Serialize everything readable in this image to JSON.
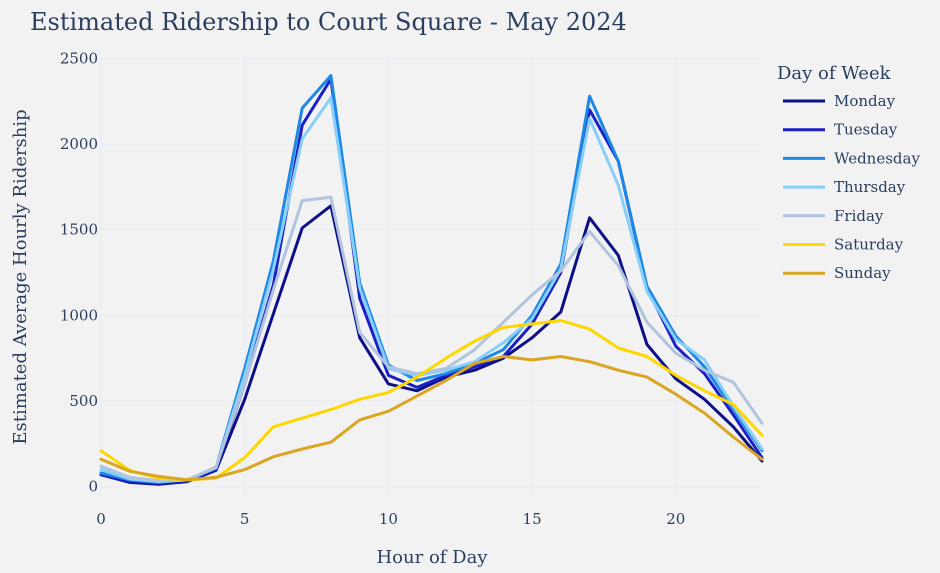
{
  "chart_data": {
    "type": "line",
    "title": "Estimated Ridership to Court Square - May 2024",
    "xlabel": "Hour of Day",
    "ylabel": "Estimated Average Hourly Ridership",
    "xlim": [
      0,
      23
    ],
    "ylim": [
      -60,
      2520
    ],
    "xticks": [
      0,
      5,
      10,
      15,
      20
    ],
    "yticks": [
      0,
      500,
      1000,
      1500,
      2000,
      2500
    ],
    "grid": true,
    "legend_title": "Day of Week",
    "legend_position": "right",
    "x": [
      0,
      1,
      2,
      3,
      4,
      5,
      6,
      7,
      8,
      9,
      10,
      11,
      12,
      13,
      14,
      15,
      16,
      17,
      18,
      19,
      20,
      21,
      22,
      23
    ],
    "series": [
      {
        "name": "Monday",
        "color": "#0d0f87",
        "values": [
          70,
          25,
          15,
          30,
          95,
          510,
          1010,
          1510,
          1640,
          870,
          600,
          560,
          640,
          680,
          750,
          870,
          1020,
          1570,
          1350,
          830,
          630,
          510,
          350,
          150
        ]
      },
      {
        "name": "Tuesday",
        "color": "#1a1fc7",
        "values": [
          70,
          30,
          20,
          35,
          100,
          600,
          1180,
          2110,
          2380,
          1100,
          650,
          580,
          650,
          700,
          760,
          950,
          1250,
          2200,
          1900,
          1160,
          820,
          660,
          420,
          170
        ]
      },
      {
        "name": "Wednesday",
        "color": "#1e88e5",
        "values": [
          80,
          40,
          25,
          40,
          110,
          690,
          1320,
          2210,
          2400,
          1190,
          710,
          620,
          660,
          720,
          800,
          1000,
          1300,
          2280,
          1900,
          1170,
          880,
          700,
          450,
          210
        ]
      },
      {
        "name": "Thursday",
        "color": "#87cefa",
        "values": [
          100,
          45,
          30,
          40,
          110,
          650,
          1270,
          2030,
          2270,
          1160,
          690,
          650,
          680,
          730,
          840,
          980,
          1270,
          2150,
          1760,
          1140,
          860,
          740,
          470,
          220
        ]
      },
      {
        "name": "Friday",
        "color": "#b0c4de",
        "values": [
          120,
          55,
          35,
          40,
          115,
          600,
          1150,
          1670,
          1690,
          900,
          700,
          660,
          690,
          800,
          960,
          1120,
          1260,
          1490,
          1290,
          960,
          780,
          680,
          610,
          370
        ]
      },
      {
        "name": "Saturday",
        "color": "#ffd700",
        "values": [
          210,
          95,
          50,
          40,
          50,
          170,
          350,
          400,
          450,
          510,
          550,
          640,
          750,
          850,
          930,
          950,
          970,
          920,
          810,
          760,
          650,
          560,
          480,
          300
        ]
      },
      {
        "name": "Sunday",
        "color": "#daa520",
        "values": [
          160,
          90,
          60,
          40,
          55,
          100,
          175,
          220,
          260,
          390,
          440,
          530,
          620,
          720,
          760,
          740,
          760,
          730,
          680,
          640,
          540,
          430,
          290,
          160
        ]
      }
    ]
  }
}
